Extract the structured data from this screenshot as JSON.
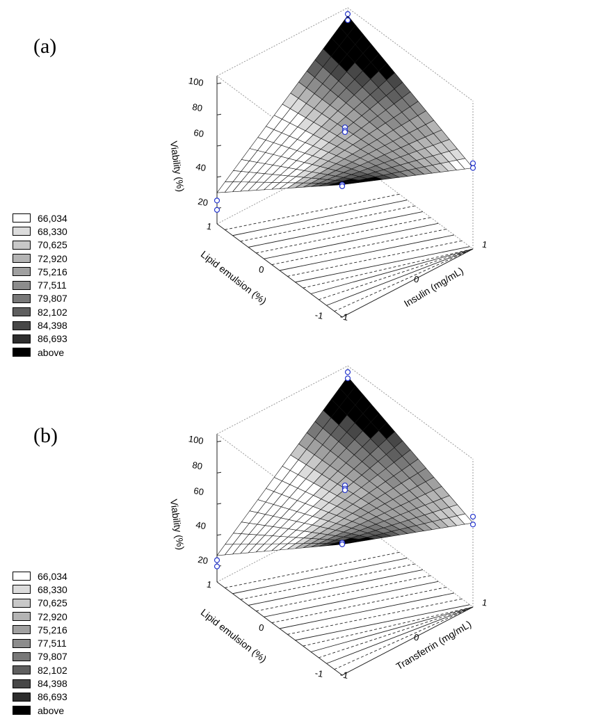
{
  "chart_data": [
    {
      "type": "surface",
      "panel_label": "(a)",
      "zlabel": "Viability (%)",
      "xlabel": "Insulin (mg/mL)",
      "ylabel": "Lipid emulsion (%)",
      "x_ticks": [
        "-1",
        "0",
        "1"
      ],
      "y_ticks": [
        "-1",
        "0",
        "1"
      ],
      "z_ticks": [
        "20",
        "40",
        "60",
        "80",
        "100"
      ],
      "zlim": [
        10,
        105
      ],
      "surface_corners": {
        "x-1_y-1": 95,
        "x1_y-1": 62,
        "x-1_y1": 30,
        "x1_y1": 100
      },
      "points": [
        {
          "x": -1,
          "y": -1,
          "z": 95
        },
        {
          "x": -1,
          "y": -1,
          "z": 94
        },
        {
          "x": 1,
          "y": 1,
          "z": 101
        },
        {
          "x": 1,
          "y": 1,
          "z": 97
        },
        {
          "x": 0,
          "y": 0,
          "z": 80
        },
        {
          "x": 0,
          "y": 0,
          "z": 78
        },
        {
          "x": 0,
          "y": 0,
          "z": 77
        },
        {
          "x": 1,
          "y": -1,
          "z": 65
        },
        {
          "x": 1,
          "y": -1,
          "z": 62
        },
        {
          "x": -1,
          "y": 1,
          "z": 25
        },
        {
          "x": -1,
          "y": 1,
          "z": 19
        }
      ],
      "legend": [
        "66,034",
        "68,330",
        "70,625",
        "72,920",
        "75,216",
        "77,511",
        "79,807",
        "82,102",
        "84,398",
        "86,693",
        "above"
      ],
      "legend_colors": [
        "#ffffff",
        "#dcdcdc",
        "#c8c8c8",
        "#b4b4b4",
        "#a0a0a0",
        "#8c8c8c",
        "#787878",
        "#5f5f5f",
        "#474747",
        "#2d2d2d",
        "#000000"
      ]
    },
    {
      "type": "surface",
      "panel_label": "(b)",
      "zlabel": "Viability (%)",
      "xlabel": "Transferrin (mg/mL)",
      "ylabel": "Lipid emulsion (%)",
      "x_ticks": [
        "-1",
        "0",
        "1"
      ],
      "y_ticks": [
        "-1",
        "0",
        "1"
      ],
      "z_ticks": [
        "20",
        "40",
        "60",
        "80",
        "100"
      ],
      "zlim": [
        10,
        105
      ],
      "surface_corners": {
        "x-1_y-1": 94,
        "x1_y-1": 64,
        "x-1_y1": 27,
        "x1_y1": 98
      },
      "points": [
        {
          "x": -1,
          "y": -1,
          "z": 95
        },
        {
          "x": -1,
          "y": -1,
          "z": 94
        },
        {
          "x": 1,
          "y": 1,
          "z": 101
        },
        {
          "x": 1,
          "y": 1,
          "z": 97
        },
        {
          "x": 0,
          "y": 0,
          "z": 80
        },
        {
          "x": 0,
          "y": 0,
          "z": 78
        },
        {
          "x": 0,
          "y": 0,
          "z": 77
        },
        {
          "x": 1,
          "y": -1,
          "z": 68
        },
        {
          "x": 1,
          "y": -1,
          "z": 63
        },
        {
          "x": -1,
          "y": 1,
          "z": 24
        },
        {
          "x": -1,
          "y": 1,
          "z": 20
        }
      ],
      "legend": [
        "66,034",
        "68,330",
        "70,625",
        "72,920",
        "75,216",
        "77,511",
        "79,807",
        "82,102",
        "84,398",
        "86,693",
        "above"
      ],
      "legend_colors": [
        "#ffffff",
        "#dcdcdc",
        "#c8c8c8",
        "#b4b4b4",
        "#a0a0a0",
        "#8c8c8c",
        "#787878",
        "#5f5f5f",
        "#474747",
        "#2d2d2d",
        "#000000"
      ]
    }
  ]
}
